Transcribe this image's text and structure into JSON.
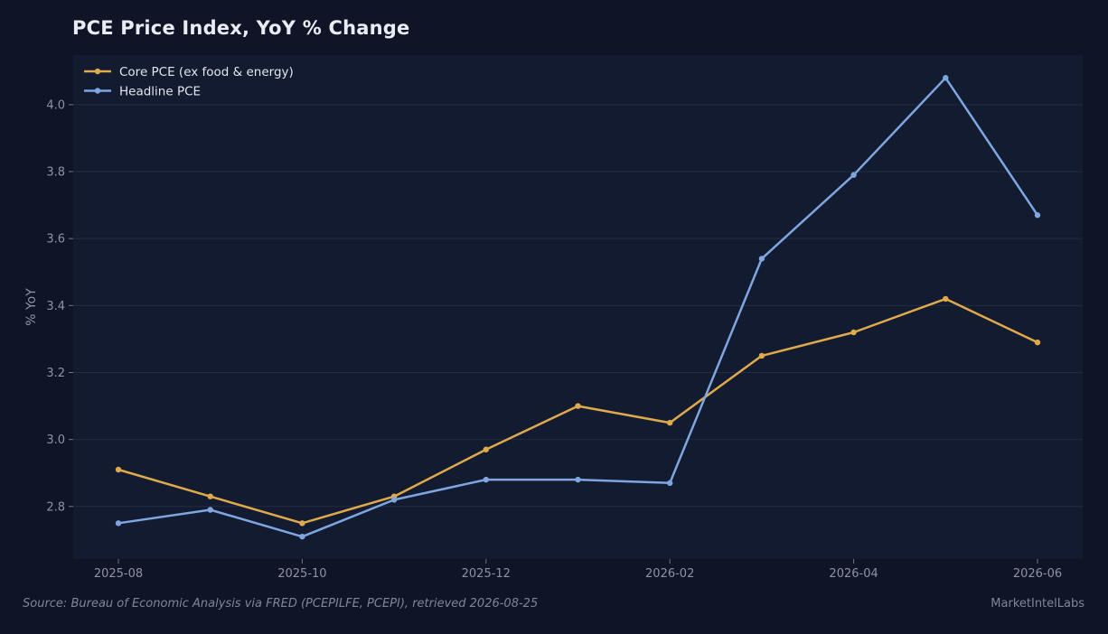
{
  "chart_data": {
    "type": "line",
    "title": "PCE Price Index, YoY % Change",
    "xlabel": "",
    "ylabel": "% YoY",
    "x": [
      "2025-08",
      "2025-09",
      "2025-10",
      "2025-11",
      "2025-12",
      "2026-01",
      "2026-02",
      "2026-03",
      "2026-04",
      "2026-05",
      "2026-06"
    ],
    "x_ticks": [
      "2025-08",
      "2025-10",
      "2025-12",
      "2026-02",
      "2026-04",
      "2026-06"
    ],
    "y_ticks": [
      "2.8",
      "3.0",
      "3.2",
      "3.4",
      "3.6",
      "3.8",
      "4.0"
    ],
    "ylim": [
      2.643,
      4.148
    ],
    "grid": true,
    "legend_position": "top-left",
    "series": [
      {
        "name": "Core PCE (ex food & energy)",
        "color": "#e0aa4c",
        "values": [
          2.91,
          2.83,
          2.75,
          2.83,
          2.97,
          3.1,
          3.05,
          3.25,
          3.32,
          3.42,
          3.29
        ]
      },
      {
        "name": "Headline PCE",
        "color": "#7fa6e0",
        "values": [
          2.75,
          2.79,
          2.71,
          2.82,
          2.88,
          2.88,
          2.87,
          3.54,
          3.79,
          4.08,
          3.67
        ]
      }
    ]
  },
  "footer": {
    "source": "Source: Bureau of Economic Analysis via FRED (PCEPILFE, PCEPI), retrieved 2026-08-25",
    "brand": "MarketIntelLabs"
  },
  "colors": {
    "page_background": "#0f1527",
    "plot_background": "#121b2f",
    "gridline": "#232c40"
  }
}
